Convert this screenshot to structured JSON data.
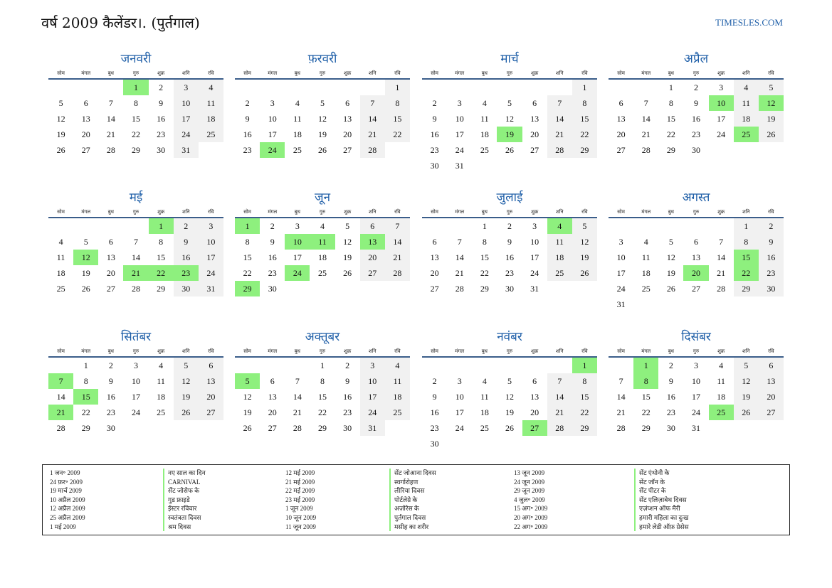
{
  "header": {
    "title": "वर्ष 2009 कैलेंडर।. (पुर्तगाल)",
    "site": "TIMESLES.COM"
  },
  "weekdays": [
    "सोम",
    "मंगल",
    "बुध",
    "गुरु",
    "शुक्र",
    "शनि",
    "रवि"
  ],
  "months": [
    {
      "name": "जनवरी",
      "offset": 3,
      "days": 31,
      "holidays": [
        1
      ]
    },
    {
      "name": "फ़रवरी",
      "offset": 6,
      "days": 28,
      "holidays": [
        24
      ]
    },
    {
      "name": "मार्च",
      "offset": 6,
      "days": 31,
      "holidays": [
        19
      ]
    },
    {
      "name": "अप्रैल",
      "offset": 2,
      "days": 30,
      "holidays": [
        10,
        12,
        25
      ]
    },
    {
      "name": "मई",
      "offset": 4,
      "days": 31,
      "holidays": [
        1,
        12,
        21,
        22,
        23
      ]
    },
    {
      "name": "जून",
      "offset": 0,
      "days": 30,
      "holidays": [
        1,
        10,
        11,
        13,
        24,
        29
      ]
    },
    {
      "name": "जुलाई",
      "offset": 2,
      "days": 31,
      "holidays": [
        4
      ]
    },
    {
      "name": "अगस्त",
      "offset": 5,
      "days": 31,
      "holidays": [
        15,
        20,
        22
      ]
    },
    {
      "name": "सितंबर",
      "offset": 1,
      "days": 30,
      "holidays": [
        7,
        15,
        21
      ]
    },
    {
      "name": "अक्तूबर",
      "offset": 3,
      "days": 31,
      "holidays": [
        5
      ]
    },
    {
      "name": "नवंबर",
      "offset": 6,
      "days": 30,
      "holidays": [
        1,
        27
      ]
    },
    {
      "name": "दिसंबर",
      "offset": 1,
      "days": 31,
      "holidays": [
        1,
        8,
        25
      ]
    }
  ],
  "legend": [
    {
      "dates": [
        "1 जन॰ 2009",
        "24 फ़र॰ 2009",
        "19 मार्च 2009",
        "10 अप्रैल 2009",
        "12 अप्रैल 2009",
        "25 अप्रैल 2009",
        "1 मई 2009"
      ],
      "names": [
        "नए साल का दिन",
        "CARNIVAL",
        "सेंट जोसेफ के",
        "गुड फ्राइडे",
        "ईस्टर रविवार",
        "स्वतंत्रता दिवस",
        "श्रम दिवस"
      ]
    },
    {
      "dates": [
        "12 मई 2009",
        "21 मई 2009",
        "22 मई 2009",
        "23 मई 2009",
        "1 जून 2009",
        "10 जून 2009",
        "11 जून 2009"
      ],
      "names": [
        "सेंट जोआना दिवस",
        "स्वर्गारोहण",
        "लीरिया दिवस",
        "पोर्टलेग्रे के",
        "अज़ोरेस के",
        "पुर्तगाल दिवस",
        "मसीह का शरीर"
      ]
    },
    {
      "dates": [
        "13 जून 2009",
        "24 जून 2009",
        "29 जून 2009",
        "4 जुल॰ 2009",
        "15 अग॰ 2009",
        "20 अग॰ 2009",
        "22 अग॰ 2009"
      ],
      "names": [
        "सेंट एंथोनी के",
        "सेंट जॉन के",
        "सेंट पीटर के",
        "सेंट एलिज़ाबेथ दिवस",
        "एज़ंप्शन ऑफ मैरी",
        "हमारी महिला का दुःख",
        "हमारे लेडी ऑफ़ ग्रेसेस"
      ]
    }
  ]
}
